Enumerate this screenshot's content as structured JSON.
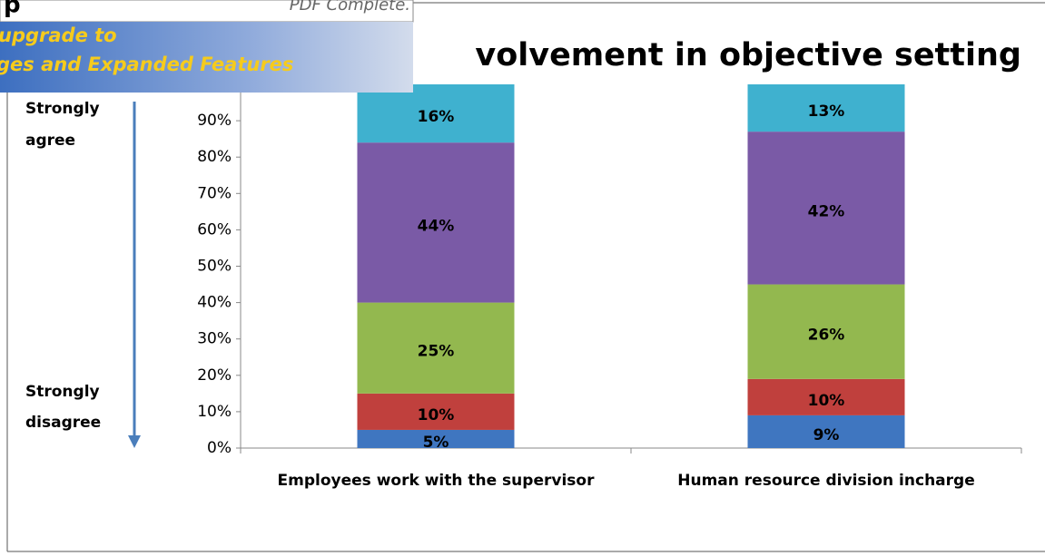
{
  "chart_data": {
    "type": "stacked_bar",
    "title": "volvement in objective setting",
    "categories": [
      "Employees work with the supervisor",
      "Human resource division incharge"
    ],
    "series": [
      {
        "color": "#3f76c0",
        "values": [
          5,
          9
        ],
        "value_labels": [
          "5%",
          "9%"
        ]
      },
      {
        "color": "#c0403d",
        "values": [
          10,
          10
        ],
        "value_labels": [
          "10%",
          "10%"
        ]
      },
      {
        "color": "#93b84f",
        "values": [
          25,
          26
        ],
        "value_labels": [
          "25%",
          "26%"
        ]
      },
      {
        "color": "#7a5aa6",
        "values": [
          44,
          42
        ],
        "value_labels": [
          "44%",
          "42%"
        ]
      },
      {
        "color": "#3fb1cf",
        "values": [
          16,
          13
        ],
        "value_labels": [
          "16%",
          "13%"
        ]
      }
    ],
    "ylim": [
      0,
      100
    ],
    "yticks": [
      {
        "value": 0,
        "label": "0%"
      },
      {
        "value": 10,
        "label": "10%"
      },
      {
        "value": 20,
        "label": "20%"
      },
      {
        "value": 30,
        "label": "30%"
      },
      {
        "value": 40,
        "label": "40%"
      },
      {
        "value": 50,
        "label": "50%"
      },
      {
        "value": 60,
        "label": "60%"
      },
      {
        "value": 70,
        "label": "70%"
      },
      {
        "value": 80,
        "label": "80%"
      },
      {
        "value": 90,
        "label": "90%"
      }
    ],
    "annotations": [
      [
        "Strongly",
        "agree"
      ],
      [
        "Strongly",
        "disagree"
      ]
    ]
  },
  "banner": {
    "brand": "p",
    "product": "PDF Complete.",
    "lines": [
      "upgrade to",
      "ges and Expanded Features"
    ]
  }
}
